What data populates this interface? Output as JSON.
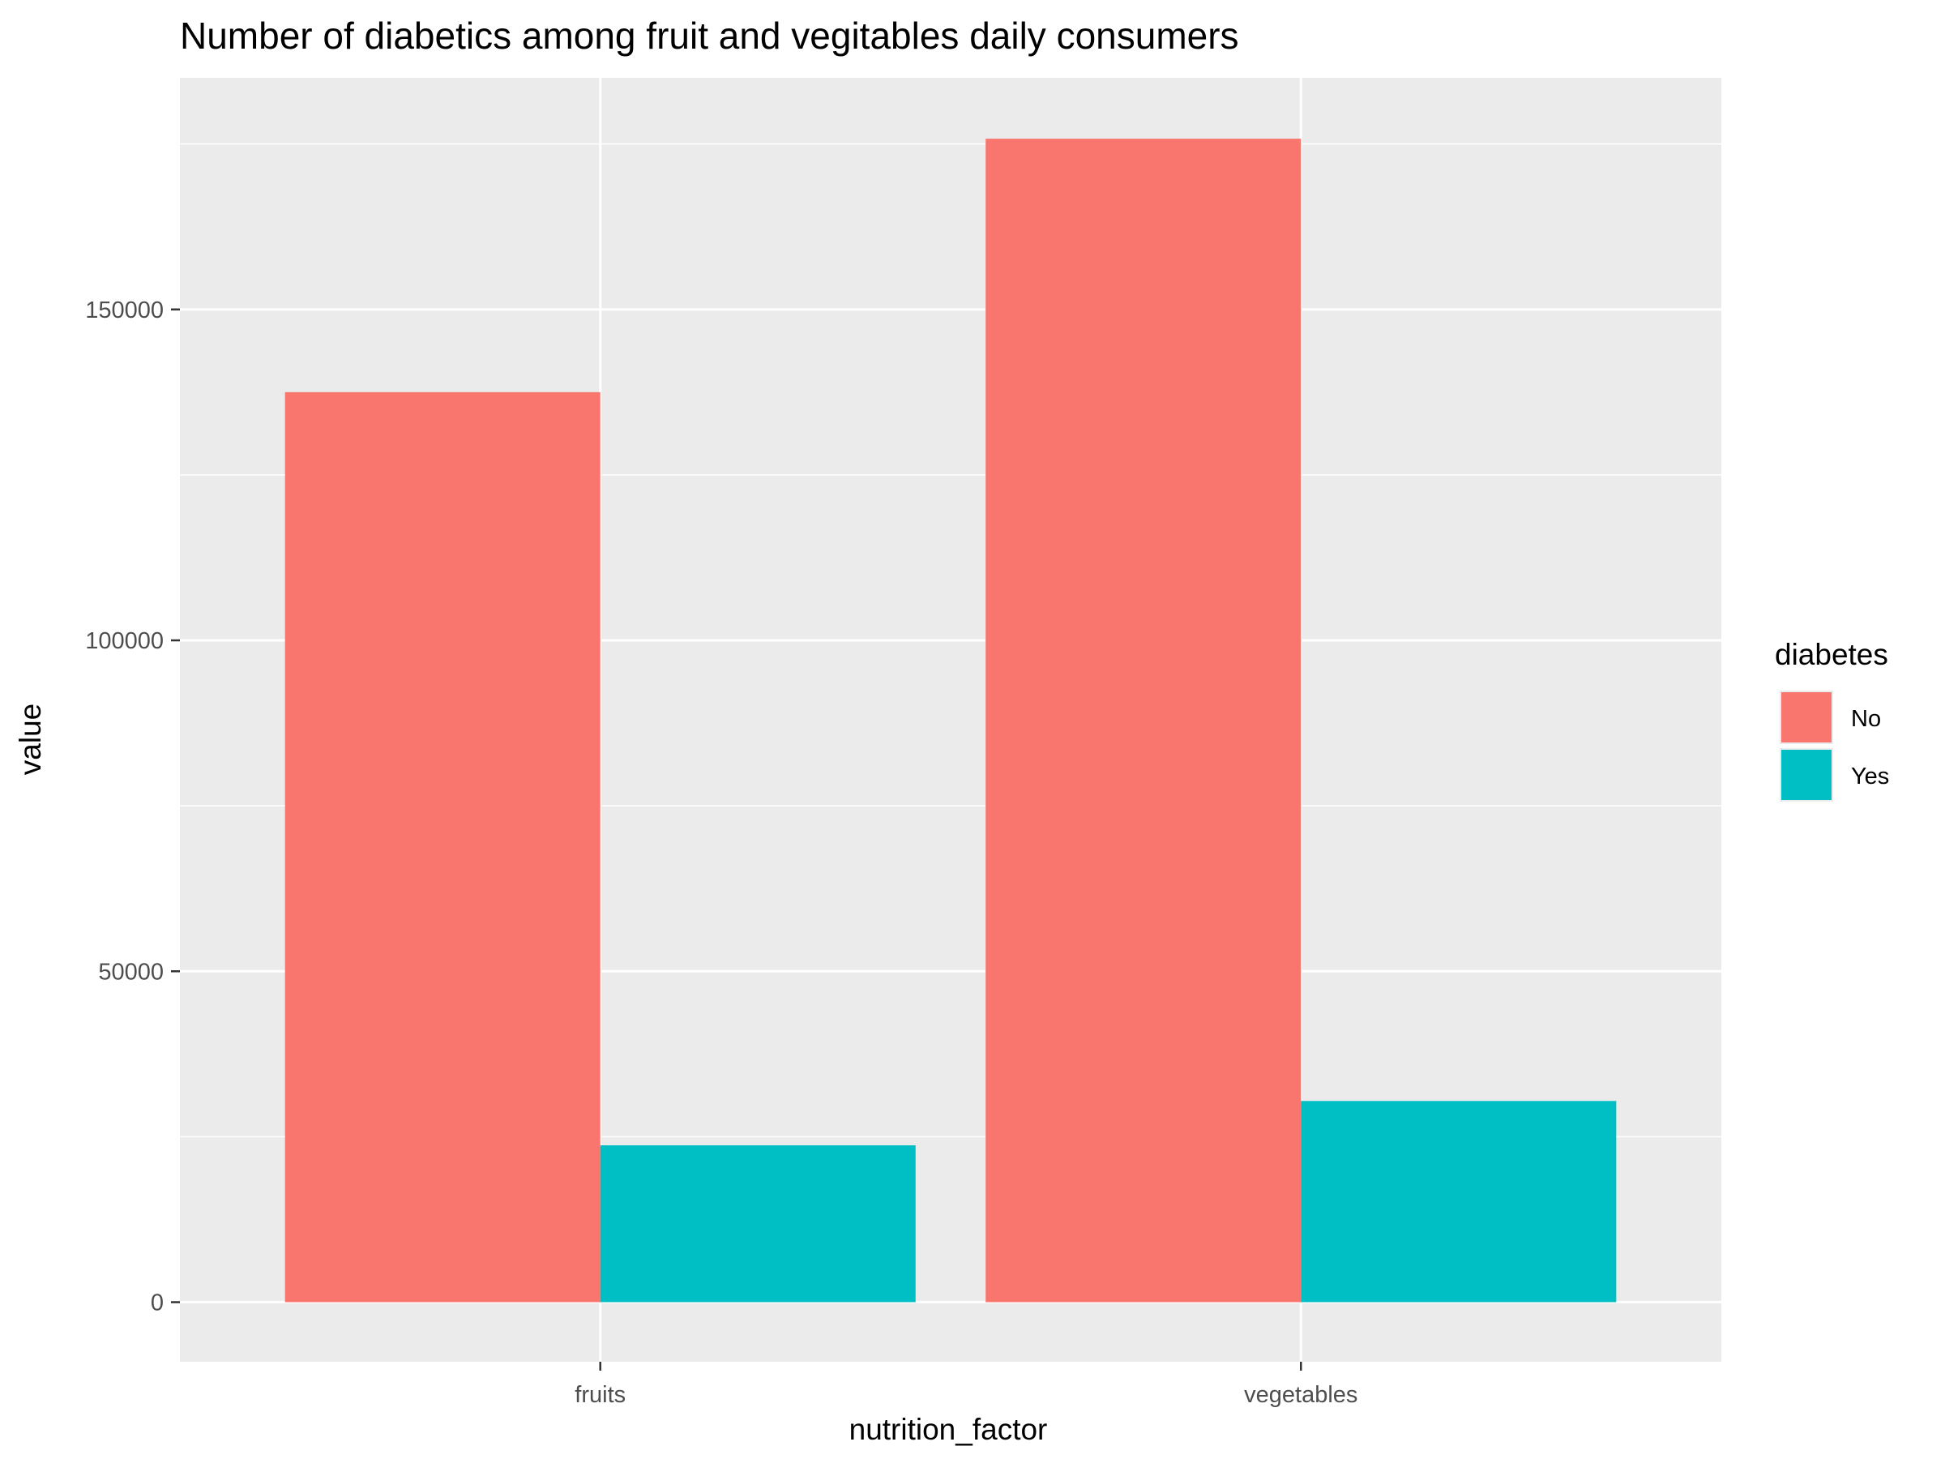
{
  "chart_data": {
    "type": "bar",
    "title": "Number of diabetics among fruit and vegitables daily consumers",
    "xlabel": "nutrition_factor",
    "ylabel": "value",
    "categories": [
      "fruits",
      "vegetables"
    ],
    "series": [
      {
        "name": "No",
        "values": [
          137500,
          175800
        ]
      },
      {
        "name": "Yes",
        "values": [
          23700,
          30400
        ]
      }
    ],
    "ylim": [
      -9000,
      185000
    ],
    "yticks": [
      0,
      50000,
      100000,
      150000
    ],
    "ytick_labels": [
      "0",
      "50000",
      "100000",
      "150000"
    ],
    "grid": true,
    "legend": {
      "title": "diabetes",
      "position": "right"
    },
    "colors": {
      "No": "#F8766D",
      "Yes": "#00BFC4",
      "panel": "#EBEBEB",
      "grid": "#FFFFFF"
    }
  }
}
